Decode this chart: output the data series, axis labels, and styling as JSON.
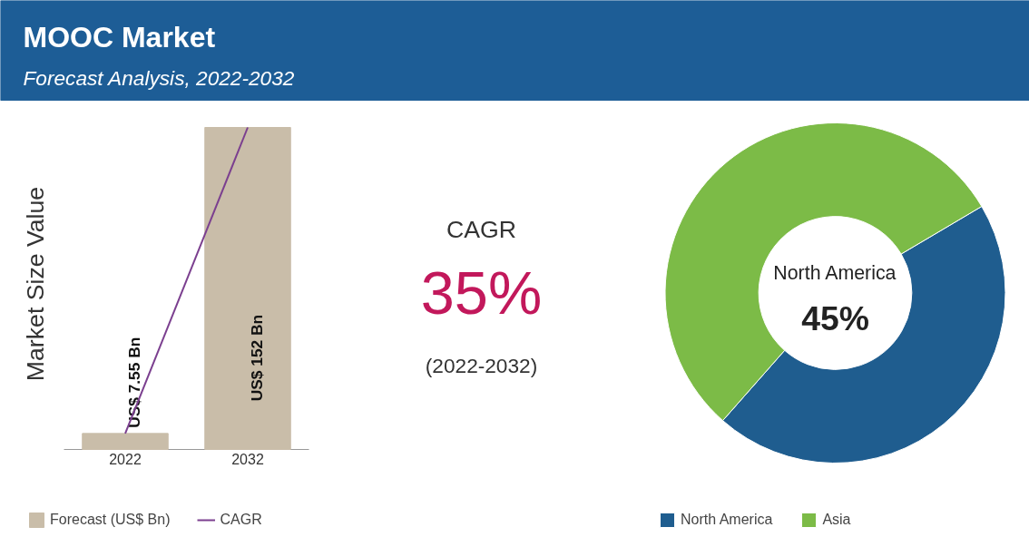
{
  "chart_data": [
    {
      "type": "bar",
      "title": "MOOC Market",
      "subtitle": "Forecast Analysis, 2022-2032",
      "ylabel": "Market Size Value",
      "categories": [
        "2022",
        "2032"
      ],
      "series": [
        {
          "type": "bar",
          "name": "Forecast (US$ Bn)",
          "color": "#c9bda9",
          "values": [
            7.55,
            152
          ],
          "value_labels": [
            "US$ 7.55 Bn",
            "US$ 152 Bn"
          ]
        },
        {
          "type": "line",
          "name": "CAGR",
          "color": "#7b3f8f",
          "values": [
            7.55,
            152
          ]
        }
      ],
      "legend": "bottom",
      "grid": false
    },
    {
      "type": "other",
      "annotations": [
        "CAGR",
        "35%",
        "(2022-2032)"
      ]
    },
    {
      "type": "donut",
      "categories": [
        "North America",
        "Asia"
      ],
      "values": [
        45,
        55
      ],
      "colors": [
        "#1f5d8f",
        "#7cbb47"
      ],
      "annotations": [
        "North America",
        "45%"
      ],
      "legend": "bottom"
    }
  ]
}
